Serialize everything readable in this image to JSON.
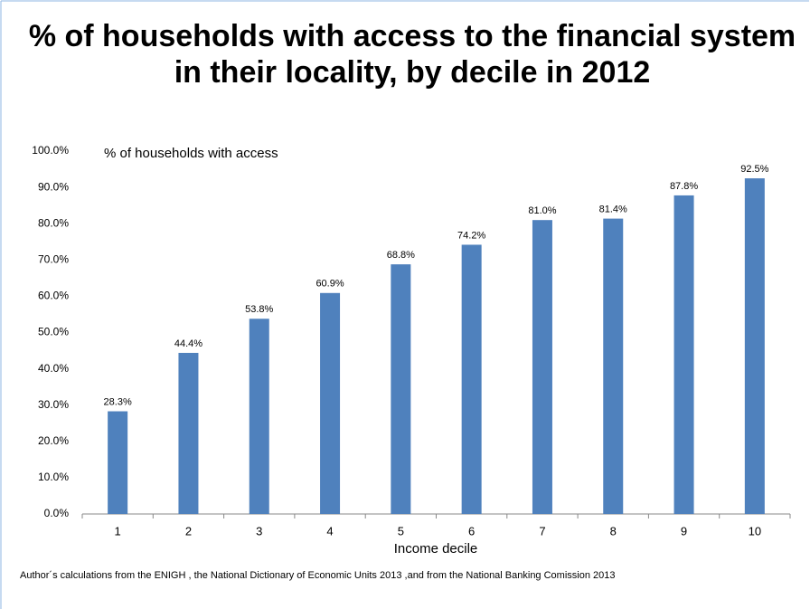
{
  "chart_data": {
    "type": "bar",
    "title": [
      "% of households with access to the financial system",
      "in their locality, by decile in 2012"
    ],
    "x_label": "Income decile",
    "note": "Author´s calculations from the ENIGH , the National Dictionary of Economic  Units 2013 ,and from the National Banking Comission 2013",
    "categories": [
      "1",
      "2",
      "3",
      "4",
      "5",
      "6",
      "7",
      "8",
      "9",
      "10"
    ],
    "series": [
      {
        "name": "% of households with access",
        "color": "#4f81bd",
        "values": [
          28.3,
          44.4,
          53.8,
          60.9,
          68.8,
          74.2,
          81.0,
          81.4,
          87.8,
          92.5
        ],
        "value_labels": [
          "28.3%",
          "44.4%",
          "53.8%",
          "60.9%",
          "68.8%",
          "74.2%",
          "81.0%",
          "81.4%",
          "87.8%",
          "92.5%"
        ]
      }
    ],
    "ylim": [
      0,
      100
    ],
    "yticks": [
      {
        "value": 0,
        "label": "0.0%"
      },
      {
        "value": 10,
        "label": "10.0%"
      },
      {
        "value": 20,
        "label": "20.0%"
      },
      {
        "value": 30,
        "label": "30.0%"
      },
      {
        "value": 40,
        "label": "40.0%"
      },
      {
        "value": 50,
        "label": "50.0%"
      },
      {
        "value": 60,
        "label": "60.0%"
      },
      {
        "value": 70,
        "label": "70.0%"
      },
      {
        "value": 80,
        "label": "80.0%"
      },
      {
        "value": 90,
        "label": "90.0%"
      },
      {
        "value": 100,
        "label": "100.0%"
      }
    ],
    "grid": false
  }
}
